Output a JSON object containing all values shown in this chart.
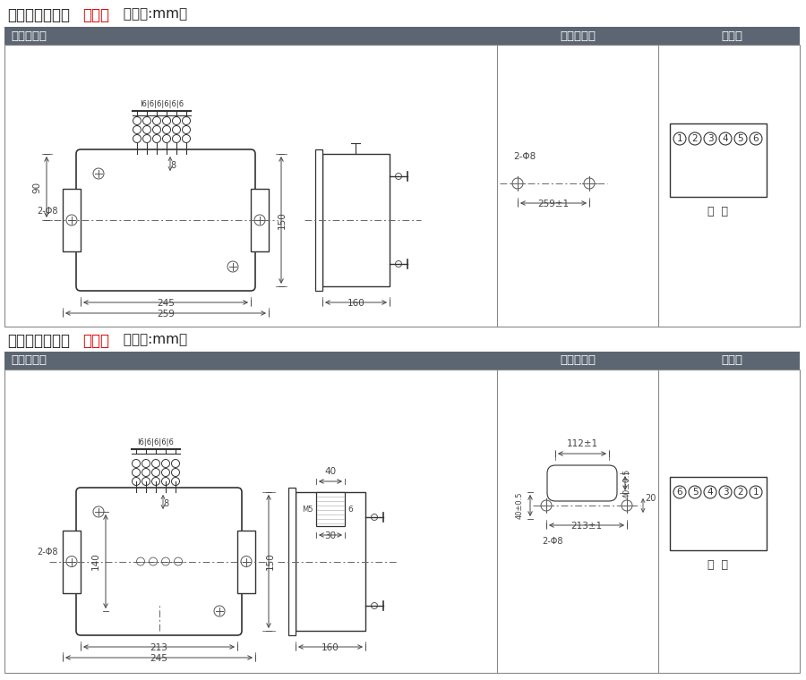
{
  "title1_black": "单相过流凸出式",
  "title1_red": "前接线",
  "title1_suffix": "  （单位:mm）",
  "title2_black": "单相过流凸出式",
  "title2_red": "后接线",
  "title2_suffix": "  （单位:mm）",
  "hdr_waixing": "外形尺寸图",
  "hdr_anzhuang": "安装开孔图",
  "hdr_duanzi": "端子图",
  "lbl_qianshi": "前  视",
  "lbl_beishi": "背  视",
  "header_bg": "#5c6672",
  "line_color": "#444444",
  "red_color": "#dd0000",
  "bg_color": "#ffffff"
}
